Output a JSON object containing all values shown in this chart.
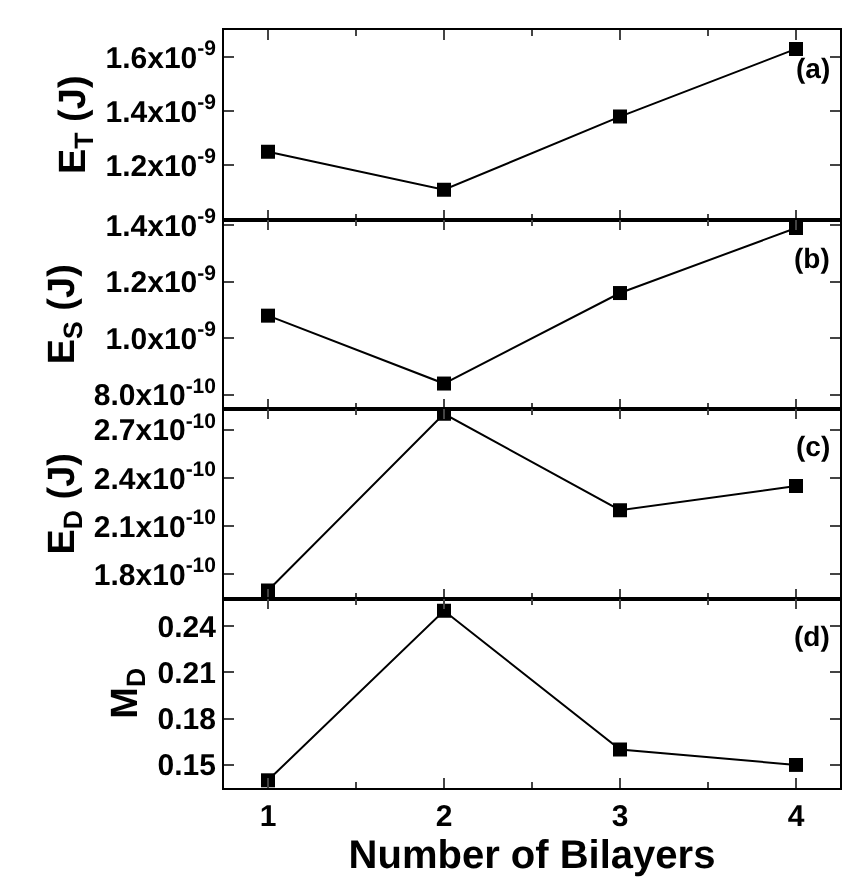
{
  "chart_data": [
    {
      "type": "line",
      "x": [
        1,
        2,
        3,
        4
      ],
      "series": [
        {
          "color": "#000000",
          "values": [
            1.25e-09,
            1.11e-09,
            1.38e-09,
            1.63e-09
          ]
        }
      ],
      "marker": "square",
      "line_style": "solid",
      "ylabel": "E$_{T}$ (J)",
      "xlim": [
        0.75,
        4.25
      ],
      "xticks": [
        1,
        2,
        3,
        4
      ],
      "ylim": [
        1e-09,
        1.7e-09
      ],
      "yticks": [
        {
          "value": 1.2e-09,
          "label": "1.2x10$^{-9}$"
        },
        {
          "value": 1.4e-09,
          "label": "1.4x10$^{-9}$"
        },
        {
          "value": 1.6e-09,
          "label": "1.6x10$^{-9}$"
        }
      ],
      "tick_labels": "y",
      "annotations": [
        "(a)"
      ]
    },
    {
      "type": "line",
      "x": [
        1,
        2,
        3,
        4
      ],
      "series": [
        {
          "color": "#000000",
          "values": [
            1.08e-09,
            8.4e-10,
            1.16e-09,
            1.39e-09
          ]
        }
      ],
      "marker": "square",
      "line_style": "solid",
      "ylabel": "E$_{S}$ (J)",
      "xlim": [
        0.75,
        4.25
      ],
      "xticks": [
        1,
        2,
        3,
        4
      ],
      "ylim": [
        7.5e-10,
        1.42e-09
      ],
      "yticks": [
        {
          "value": 8e-10,
          "label": "8.0x10$^{-10}$"
        },
        {
          "value": 1e-09,
          "label": "1.0x10$^{-9}$"
        },
        {
          "value": 1.2e-09,
          "label": "1.2x10$^{-9}$"
        },
        {
          "value": 1.4e-09,
          "label": "1.4x10$^{-9}$"
        }
      ],
      "tick_labels": "y",
      "annotations": [
        "(b)"
      ]
    },
    {
      "type": "line",
      "x": [
        1,
        2,
        3,
        4
      ],
      "series": [
        {
          "color": "#000000",
          "values": [
            1.7e-10,
            2.8e-10,
            2.2e-10,
            2.35e-10
          ]
        }
      ],
      "marker": "square",
      "line_style": "solid",
      "ylabel": "E$_{D}$ (J)",
      "xlim": [
        0.75,
        4.25
      ],
      "xticks": [
        1,
        2,
        3,
        4
      ],
      "ylim": [
        1.65e-10,
        2.83e-10
      ],
      "yticks": [
        {
          "value": 1.8e-10,
          "label": "1.8x10$^{-10}$"
        },
        {
          "value": 2.1e-10,
          "label": "2.1x10$^{-10}$"
        },
        {
          "value": 2.4e-10,
          "label": "2.4x10$^{-10}$"
        },
        {
          "value": 2.7e-10,
          "label": "2.7x10$^{-10}$"
        }
      ],
      "tick_labels": "y",
      "annotations": [
        "(c)"
      ]
    },
    {
      "type": "line",
      "x": [
        1,
        2,
        3,
        4
      ],
      "series": [
        {
          "color": "#000000",
          "values": [
            0.14,
            0.25,
            0.16,
            0.15
          ]
        }
      ],
      "marker": "square",
      "line_style": "solid",
      "ylabel": "M$_{D}$",
      "xlabel": "Number of Bilayers",
      "xlim": [
        0.75,
        4.25
      ],
      "xticks": [
        1,
        2,
        3,
        4
      ],
      "ylim": [
        0.135,
        0.258
      ],
      "yticks": [
        0.15,
        0.18,
        0.21,
        0.24
      ],
      "annotations": [
        "(d)"
      ]
    }
  ]
}
